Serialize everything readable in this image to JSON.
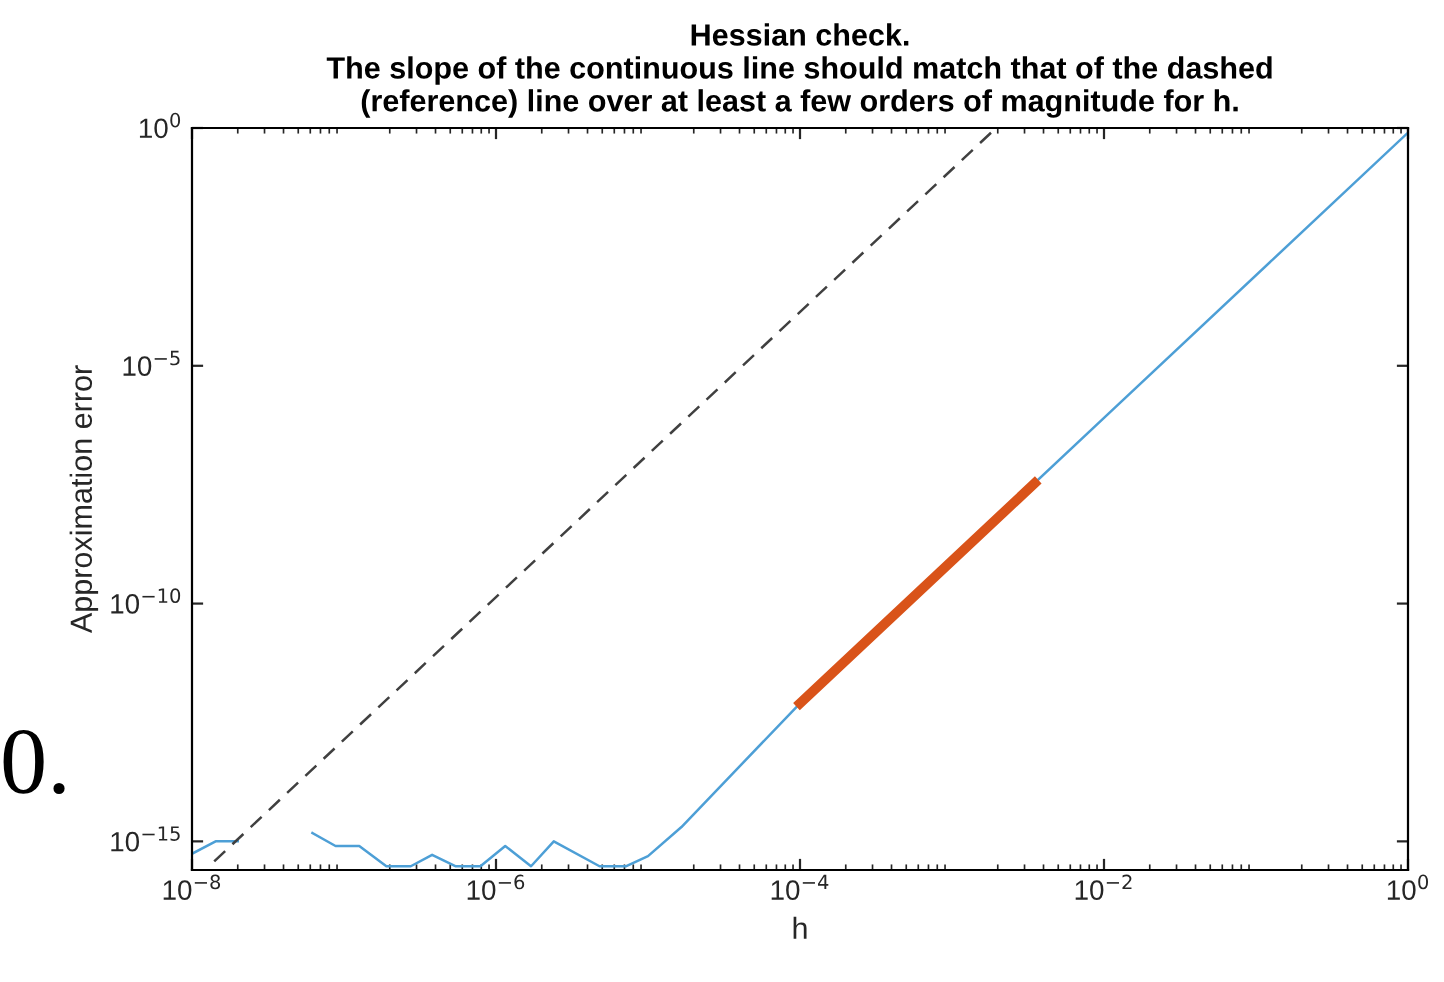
{
  "chart_data": {
    "type": "line",
    "title": "Hessian check.\nThe slope of the continuous line should match that of the dashed\n(reference) line over at least a few orders of magnitude for h.",
    "xlabel": "h",
    "ylabel": "Approximation error",
    "log": "xy",
    "grid": false,
    "legend": false,
    "marker": "none",
    "xlim": [
      1e-08,
      1
    ],
    "ylim": [
      2.5e-16,
      1
    ],
    "xticks": [
      {
        "value": 1e-08,
        "label": "10$^{−8}$"
      },
      {
        "value": 1e-06,
        "label": "10$^{−6}$"
      },
      {
        "value": 0.0001,
        "label": "10$^{−4}$"
      },
      {
        "value": 0.01,
        "label": "10$^{−2}$"
      },
      {
        "value": 1,
        "label": "10$^{0}$"
      }
    ],
    "yticks": [
      {
        "value": 1e-15,
        "label": "10$^{−15}$"
      },
      {
        "value": 1e-10,
        "label": "10$^{−10}$"
      },
      {
        "value": 1e-05,
        "label": "10$^{−5}$"
      },
      {
        "value": 1,
        "label": "10$^{0}$"
      }
    ],
    "annotations": [
      "0."
    ],
    "series": [
      {
        "color": "#4d9fd6",
        "line_style": "solid",
        "x": [
          1e-08,
          1.43e-08,
          2e-08,
          3e-08,
          6.2e-08,
          8.8e-08,
          1.26e-07,
          1.9e-07,
          2.75e-07,
          3.8e-07,
          5.4e-07,
          7.9e-07,
          1.15e-06,
          1.7e-06,
          2.4e-06,
          4.8e-06,
          7.2e-06,
          1e-05,
          1.66e-05,
          0.0001,
          0.01,
          1
        ],
        "values": [
          5.5e-16,
          1e-15,
          1e-15,
          null,
          1.5e-15,
          8e-16,
          8e-16,
          3e-16,
          3e-16,
          5.2e-16,
          3e-16,
          3e-16,
          8e-16,
          3e-16,
          1e-15,
          3e-16,
          3e-16,
          4.9e-16,
          2e-15,
          8e-13,
          8e-07,
          0.8
        ]
      },
      {
        "color": "#d95319",
        "line_style": "solid",
        "x": [
          0.0001,
          0.0035
        ],
        "values": [
          8e-13,
          3.4e-08
        ]
      },
      {
        "color": "#404040",
        "line_style": "dashed",
        "x": [
          1.4e-08,
          0.00195
        ],
        "values": [
          3.8e-16,
          1
        ]
      }
    ]
  }
}
